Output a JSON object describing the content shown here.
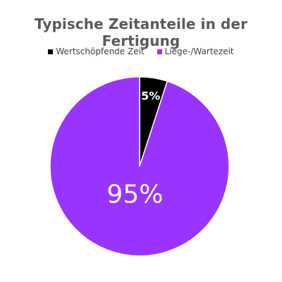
{
  "chart_data": {
    "type": "pie",
    "title": "Typische Zeitanteile in der Fertigung",
    "legend_position": "top",
    "slices": [
      {
        "name": "Wertschöpfende Zeit",
        "value": 5,
        "label": "5%",
        "color": "#000000"
      },
      {
        "name": "Liege-/Wartezeit",
        "value": 95,
        "label": "95%",
        "color": "#9933FF"
      }
    ]
  }
}
